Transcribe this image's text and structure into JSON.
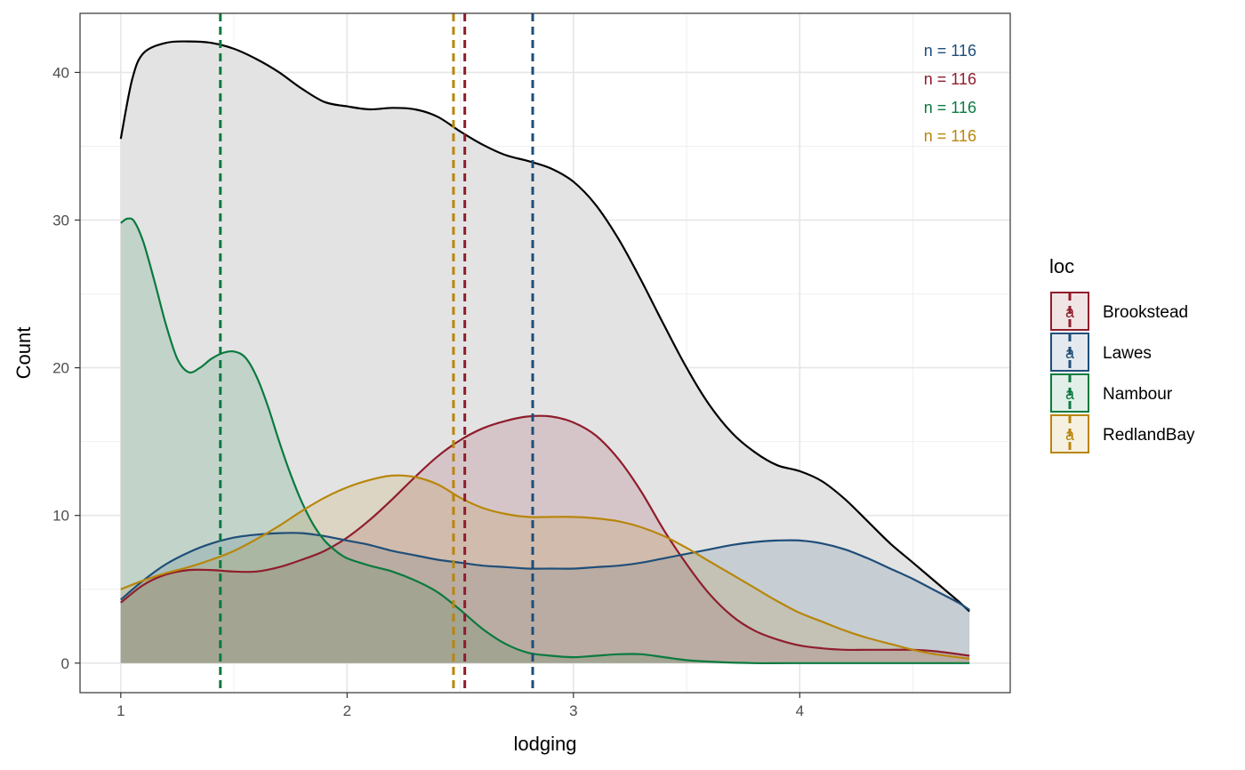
{
  "chart_data": {
    "type": "area",
    "xlabel": "lodging",
    "ylabel": "Count",
    "xlim": [
      0.82,
      4.93
    ],
    "ylim": [
      -2,
      44
    ],
    "x_ticks": [
      1,
      2,
      3,
      4
    ],
    "x_tick_labels": [
      "1",
      "2",
      "3",
      "4"
    ],
    "y_ticks": [
      0,
      10,
      20,
      30,
      40
    ],
    "y_tick_labels": [
      "0",
      "10",
      "20",
      "30",
      "40"
    ],
    "grid": true,
    "legend": {
      "title": "loc",
      "placement": "right"
    },
    "total": {
      "color": "#000000",
      "fill": "#e3e3e3",
      "points": [
        [
          1.0,
          35.5
        ],
        [
          1.05,
          39.5
        ],
        [
          1.1,
          41.3
        ],
        [
          1.2,
          42.0
        ],
        [
          1.3,
          42.1
        ],
        [
          1.4,
          42.0
        ],
        [
          1.5,
          41.6
        ],
        [
          1.6,
          40.9
        ],
        [
          1.7,
          40.0
        ],
        [
          1.8,
          38.9
        ],
        [
          1.9,
          38.0
        ],
        [
          2.0,
          37.7
        ],
        [
          2.1,
          37.5
        ],
        [
          2.2,
          37.6
        ],
        [
          2.3,
          37.5
        ],
        [
          2.4,
          37.0
        ],
        [
          2.5,
          36.0
        ],
        [
          2.6,
          35.1
        ],
        [
          2.7,
          34.4
        ],
        [
          2.8,
          34.0
        ],
        [
          2.9,
          33.5
        ],
        [
          3.0,
          32.6
        ],
        [
          3.1,
          31.0
        ],
        [
          3.2,
          28.7
        ],
        [
          3.3,
          25.9
        ],
        [
          3.4,
          22.9
        ],
        [
          3.5,
          20.0
        ],
        [
          3.6,
          17.5
        ],
        [
          3.7,
          15.6
        ],
        [
          3.8,
          14.3
        ],
        [
          3.9,
          13.4
        ],
        [
          4.0,
          13.0
        ],
        [
          4.1,
          12.3
        ],
        [
          4.2,
          11.1
        ],
        [
          4.3,
          9.6
        ],
        [
          4.4,
          8.1
        ],
        [
          4.5,
          6.8
        ],
        [
          4.6,
          5.5
        ],
        [
          4.7,
          4.2
        ],
        [
          4.75,
          3.5
        ]
      ]
    },
    "series": [
      {
        "name": "Brookstead",
        "color": "#8f1d2c",
        "mean": 2.52,
        "n_label": "n = 116",
        "points": [
          [
            1.0,
            4.1
          ],
          [
            1.1,
            5.3
          ],
          [
            1.2,
            6.0
          ],
          [
            1.3,
            6.3
          ],
          [
            1.4,
            6.3
          ],
          [
            1.5,
            6.2
          ],
          [
            1.6,
            6.2
          ],
          [
            1.7,
            6.5
          ],
          [
            1.8,
            7.0
          ],
          [
            1.9,
            7.6
          ],
          [
            2.0,
            8.5
          ],
          [
            2.1,
            9.7
          ],
          [
            2.2,
            11.1
          ],
          [
            2.3,
            12.6
          ],
          [
            2.4,
            14.0
          ],
          [
            2.5,
            15.1
          ],
          [
            2.6,
            15.9
          ],
          [
            2.7,
            16.4
          ],
          [
            2.8,
            16.7
          ],
          [
            2.9,
            16.7
          ],
          [
            3.0,
            16.3
          ],
          [
            3.1,
            15.4
          ],
          [
            3.2,
            13.8
          ],
          [
            3.3,
            11.6
          ],
          [
            3.4,
            9.0
          ],
          [
            3.5,
            6.7
          ],
          [
            3.6,
            4.7
          ],
          [
            3.7,
            3.2
          ],
          [
            3.8,
            2.2
          ],
          [
            3.9,
            1.6
          ],
          [
            4.0,
            1.2
          ],
          [
            4.1,
            1.0
          ],
          [
            4.2,
            0.9
          ],
          [
            4.3,
            0.9
          ],
          [
            4.4,
            0.9
          ],
          [
            4.5,
            0.9
          ],
          [
            4.6,
            0.8
          ],
          [
            4.75,
            0.5
          ]
        ]
      },
      {
        "name": "Lawes",
        "color": "#1f4e79",
        "mean": 2.82,
        "n_label": "n = 116",
        "points": [
          [
            1.0,
            4.3
          ],
          [
            1.1,
            5.6
          ],
          [
            1.2,
            6.7
          ],
          [
            1.3,
            7.5
          ],
          [
            1.4,
            8.1
          ],
          [
            1.5,
            8.5
          ],
          [
            1.6,
            8.7
          ],
          [
            1.7,
            8.8
          ],
          [
            1.8,
            8.8
          ],
          [
            1.9,
            8.6
          ],
          [
            2.0,
            8.3
          ],
          [
            2.1,
            8.0
          ],
          [
            2.2,
            7.6
          ],
          [
            2.3,
            7.3
          ],
          [
            2.4,
            7.0
          ],
          [
            2.5,
            6.8
          ],
          [
            2.6,
            6.6
          ],
          [
            2.7,
            6.5
          ],
          [
            2.8,
            6.4
          ],
          [
            2.9,
            6.4
          ],
          [
            3.0,
            6.4
          ],
          [
            3.1,
            6.5
          ],
          [
            3.2,
            6.6
          ],
          [
            3.3,
            6.8
          ],
          [
            3.4,
            7.1
          ],
          [
            3.5,
            7.4
          ],
          [
            3.6,
            7.7
          ],
          [
            3.7,
            8.0
          ],
          [
            3.8,
            8.2
          ],
          [
            3.9,
            8.3
          ],
          [
            4.0,
            8.3
          ],
          [
            4.1,
            8.1
          ],
          [
            4.2,
            7.7
          ],
          [
            4.3,
            7.1
          ],
          [
            4.4,
            6.4
          ],
          [
            4.5,
            5.7
          ],
          [
            4.6,
            4.9
          ],
          [
            4.7,
            4.1
          ],
          [
            4.75,
            3.6
          ]
        ]
      },
      {
        "name": "Nambour",
        "color": "#0a7a3f",
        "mean": 1.44,
        "n_label": "n = 116",
        "points": [
          [
            1.0,
            29.8
          ],
          [
            1.03,
            30.1
          ],
          [
            1.06,
            29.9
          ],
          [
            1.1,
            28.5
          ],
          [
            1.15,
            25.8
          ],
          [
            1.2,
            22.9
          ],
          [
            1.25,
            20.6
          ],
          [
            1.3,
            19.7
          ],
          [
            1.35,
            20.0
          ],
          [
            1.4,
            20.6
          ],
          [
            1.45,
            21.0
          ],
          [
            1.5,
            21.1
          ],
          [
            1.55,
            20.7
          ],
          [
            1.6,
            19.4
          ],
          [
            1.65,
            17.4
          ],
          [
            1.7,
            15.0
          ],
          [
            1.75,
            12.8
          ],
          [
            1.8,
            10.9
          ],
          [
            1.85,
            9.4
          ],
          [
            1.9,
            8.3
          ],
          [
            1.95,
            7.6
          ],
          [
            2.0,
            7.1
          ],
          [
            2.1,
            6.6
          ],
          [
            2.2,
            6.2
          ],
          [
            2.3,
            5.6
          ],
          [
            2.4,
            4.8
          ],
          [
            2.5,
            3.6
          ],
          [
            2.6,
            2.3
          ],
          [
            2.7,
            1.3
          ],
          [
            2.8,
            0.7
          ],
          [
            2.9,
            0.5
          ],
          [
            3.0,
            0.4
          ],
          [
            3.1,
            0.5
          ],
          [
            3.2,
            0.6
          ],
          [
            3.3,
            0.6
          ],
          [
            3.4,
            0.4
          ],
          [
            3.5,
            0.2
          ],
          [
            3.6,
            0.1
          ],
          [
            3.8,
            0.0
          ],
          [
            4.0,
            0.0
          ],
          [
            4.75,
            0.0
          ]
        ]
      },
      {
        "name": "RedlandBay",
        "color": "#b8860b",
        "mean": 2.47,
        "n_label": "n = 116",
        "points": [
          [
            1.0,
            5.0
          ],
          [
            1.1,
            5.6
          ],
          [
            1.2,
            6.1
          ],
          [
            1.3,
            6.5
          ],
          [
            1.4,
            7.0
          ],
          [
            1.5,
            7.6
          ],
          [
            1.6,
            8.4
          ],
          [
            1.7,
            9.3
          ],
          [
            1.8,
            10.3
          ],
          [
            1.9,
            11.2
          ],
          [
            2.0,
            11.9
          ],
          [
            2.1,
            12.4
          ],
          [
            2.2,
            12.7
          ],
          [
            2.3,
            12.6
          ],
          [
            2.4,
            12.1
          ],
          [
            2.5,
            11.2
          ],
          [
            2.6,
            10.5
          ],
          [
            2.7,
            10.1
          ],
          [
            2.8,
            9.9
          ],
          [
            2.9,
            9.9
          ],
          [
            3.0,
            9.9
          ],
          [
            3.1,
            9.8
          ],
          [
            3.2,
            9.6
          ],
          [
            3.3,
            9.2
          ],
          [
            3.4,
            8.6
          ],
          [
            3.5,
            7.8
          ],
          [
            3.6,
            6.9
          ],
          [
            3.7,
            6.0
          ],
          [
            3.8,
            5.1
          ],
          [
            3.9,
            4.2
          ],
          [
            4.0,
            3.4
          ],
          [
            4.1,
            2.8
          ],
          [
            4.2,
            2.2
          ],
          [
            4.3,
            1.7
          ],
          [
            4.4,
            1.3
          ],
          [
            4.5,
            0.9
          ],
          [
            4.6,
            0.6
          ],
          [
            4.75,
            0.3
          ]
        ]
      }
    ],
    "annotation_order": [
      "Lawes",
      "Brookstead",
      "Nambour",
      "RedlandBay"
    ]
  }
}
